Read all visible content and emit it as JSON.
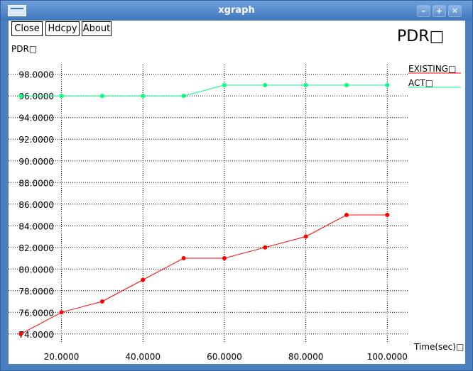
{
  "window": {
    "title": "xgraph",
    "controls": {
      "minimize_icon": "minimize-icon",
      "maximize_icon": "maximize-icon",
      "close_icon": "close-icon"
    }
  },
  "toolbar": {
    "close_label": "Close",
    "hdcpy_label": "Hdcpy",
    "about_label": "About"
  },
  "chart_data": {
    "type": "line",
    "title": "PDR□",
    "ylabel": "PDR□",
    "xlabel": "Time(sec)□",
    "xlim": [
      7,
      105
    ],
    "ylim": [
      73.2,
      98.9
    ],
    "x_ticks": [
      20,
      40,
      60,
      80,
      100
    ],
    "x_tick_labels": [
      "20.0000",
      "40.0000",
      "60.0000",
      "80.0000",
      "100.0000"
    ],
    "y_ticks": [
      74,
      76,
      78,
      80,
      82,
      84,
      86,
      88,
      90,
      92,
      94,
      96,
      98
    ],
    "y_tick_labels": [
      "74.0000",
      "76.0000",
      "78.0000",
      "80.0000",
      "82.0000",
      "84.0000",
      "86.0000",
      "88.0000",
      "90.0000",
      "92.0000",
      "94.0000",
      "96.0000",
      "98.0000"
    ],
    "grid": true,
    "legend_position": "right",
    "series": [
      {
        "name": "EXISTING□",
        "color": "#ff0000",
        "x": [
          10,
          20,
          30,
          40,
          50,
          60,
          70,
          80,
          90,
          100
        ],
        "y": [
          74,
          76,
          77,
          79,
          81,
          81,
          82,
          83,
          85,
          85
        ]
      },
      {
        "name": "ACT□",
        "color": "#00ff80",
        "x": [
          10,
          20,
          30,
          40,
          50,
          60,
          70,
          80,
          90,
          100
        ],
        "y": [
          96,
          96,
          96,
          96,
          96,
          97,
          97,
          97,
          97,
          97
        ]
      }
    ]
  }
}
